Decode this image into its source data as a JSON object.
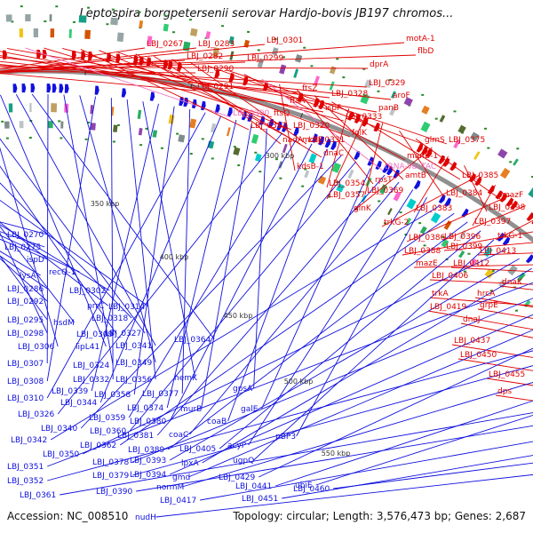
{
  "title": "Leptospira borgpetersenii serovar Hardjo-bovis JB197 chromos...",
  "footer": {
    "accession": "Accession: NC_008510",
    "summary": "Topology: circular; Length: 3,576,473 bp; Genes: 2,687"
  },
  "colors": {
    "forward": "#e00000",
    "reverse": "#1010e0",
    "highlight": "#f070c0",
    "backbone": "#909090",
    "tick": "#333333"
  },
  "ticks": [
    "300 kbp",
    "350 kbp",
    "400 kbp",
    "450 kbp",
    "500 kbp",
    "550 kbp"
  ],
  "forward_labels": [
    "LBJ_0267",
    "LBJ_0283",
    "LBJ_0301",
    "motA-1",
    "LBJ_0282",
    "LBJ_0299",
    "flbD",
    "LBJ_0290",
    "dprA",
    "LBJ_0291",
    "LBJ_0329",
    "ftsZ",
    "LBJ_0328",
    "aroF",
    "ftsA",
    "ispF",
    "panB",
    "LBJ_0300",
    "ftsQ",
    "LBJ_0333",
    "LBJ_0312",
    "LBJ_0320",
    "folK",
    "motB",
    "dnaC",
    "nadA",
    "LBJ_0331",
    "glmS",
    "LBJ_0375",
    "manB-1",
    "tRNA-Val-TAC",
    "kdsB-1",
    "rpsT",
    "amtB",
    "LBJ_0385",
    "LBJ_0354",
    "LBJ_0357",
    "LBJ_0369",
    "LBJ_0384",
    "mazF",
    "glnK",
    "LBJ_0383",
    "LBJ_0398",
    "trkG-2",
    "LBJ_0397",
    "LBJ_0386",
    "LBJ_0396",
    "trkG-1",
    "LBJ_0388",
    "LBJ_0399",
    "LBJ_0413",
    "mazE",
    "LBJ_0412",
    "LBJ_0406",
    "dnaK",
    "trkA",
    "hrcA",
    "grpE",
    "LBJ_0419",
    "dnaJ",
    "LBJ_0437",
    "LBJ_0450",
    "LBJ_0455",
    "dps"
  ],
  "reverse_labels": [
    "LBJ_0270",
    "LBJ_0275",
    "ispD",
    "recQ-1",
    "lysA",
    "LBJ_0286",
    "LBJ_0302",
    "LBJ_0292",
    "prrC",
    "LBJ_0314",
    "LBJ_0295",
    "hsdM",
    "LBJ_0318",
    "LBJ_0298",
    "LBJ_0309",
    "LBJ_0327",
    "LBJ_0306",
    "lipL41",
    "LBJ_0341",
    "LBJ_0364",
    "LBJ_0307",
    "LBJ_0324",
    "LBJ_0349",
    "LBJ_0308",
    "LBJ_0332",
    "LBJ_0356",
    "hemK",
    "LBJ_0339",
    "LBJ_0358",
    "LBJ_0377",
    "LBJ_0310",
    "LBJ_0344",
    "LBJ_0374",
    "murB",
    "gpsA",
    "LBJ_0326",
    "LBJ_0359",
    "LBJ_0380",
    "coaB",
    "LBJ_0340",
    "LBJ_0360",
    "galE",
    "LBJ_0381",
    "coaC",
    "acyP",
    "pBP3",
    "LBJ_0342",
    "LBJ_0362",
    "LBJ_0389",
    "LBJ_0405",
    "ugpQ",
    "LBJ_0350",
    "LBJ_0393",
    "lpxA",
    "LBJ_0351",
    "LBJ_0378",
    "LBJ_0394",
    "gmd",
    "LBJ_0429",
    "LBJ_0352",
    "LBJ_0379",
    "normM",
    "LBJ_0441",
    "ubiE",
    "LBJ_0361",
    "LBJ_0390",
    "LBJ_0417",
    "LBJ_0451",
    "LBJ_0460",
    "nudH"
  ]
}
